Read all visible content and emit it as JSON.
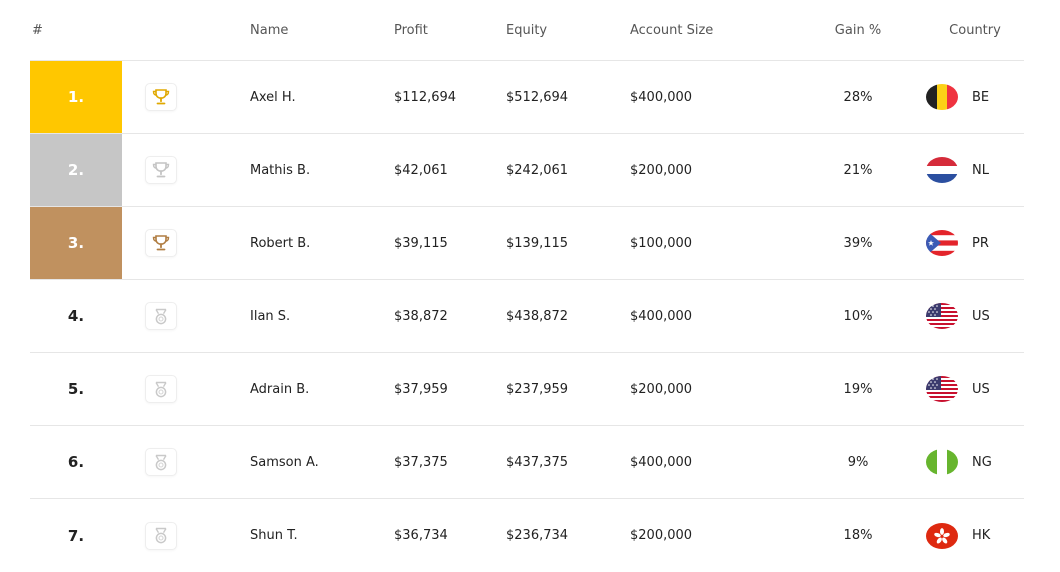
{
  "header": {
    "rank": "#",
    "name": "Name",
    "profit": "Profit",
    "equity": "Equity",
    "account_size": "Account Size",
    "gain": "Gain %",
    "country": "Country"
  },
  "rows": [
    {
      "rank": "1.",
      "icon": "trophy-gold-icon",
      "name": "Axel H.",
      "profit": "$112,694",
      "equity": "$512,694",
      "account_size": "$400,000",
      "gain": "28%",
      "country": "BE",
      "flag": "belgium-flag-icon"
    },
    {
      "rank": "2.",
      "icon": "trophy-silver-icon",
      "name": "Mathis B.",
      "profit": "$42,061",
      "equity": "$242,061",
      "account_size": "$200,000",
      "gain": "21%",
      "country": "NL",
      "flag": "netherlands-flag-icon"
    },
    {
      "rank": "3.",
      "icon": "trophy-bronze-icon",
      "name": "Robert B.",
      "profit": "$39,115",
      "equity": "$139,115",
      "account_size": "$100,000",
      "gain": "39%",
      "country": "PR",
      "flag": "puerto-rico-flag-icon"
    },
    {
      "rank": "4.",
      "icon": "medal-icon",
      "name": "Ilan S.",
      "profit": "$38,872",
      "equity": "$438,872",
      "account_size": "$400,000",
      "gain": "10%",
      "country": "US",
      "flag": "usa-flag-icon"
    },
    {
      "rank": "5.",
      "icon": "medal-icon",
      "name": "Adrain B.",
      "profit": "$37,959",
      "equity": "$237,959",
      "account_size": "$200,000",
      "gain": "19%",
      "country": "US",
      "flag": "usa-flag-icon"
    },
    {
      "rank": "6.",
      "icon": "medal-icon",
      "name": "Samson A.",
      "profit": "$37,375",
      "equity": "$437,375",
      "account_size": "$400,000",
      "gain": "9%",
      "country": "NG",
      "flag": "nigeria-flag-icon"
    },
    {
      "rank": "7.",
      "icon": "medal-icon",
      "name": "Shun T.",
      "profit": "$36,734",
      "equity": "$236,734",
      "account_size": "$200,000",
      "gain": "18%",
      "country": "HK",
      "flag": "hong-kong-flag-icon"
    }
  ],
  "colors": {
    "gold": "#ffc700",
    "silver": "#c6c6c6",
    "bronze": "#c0915f"
  }
}
